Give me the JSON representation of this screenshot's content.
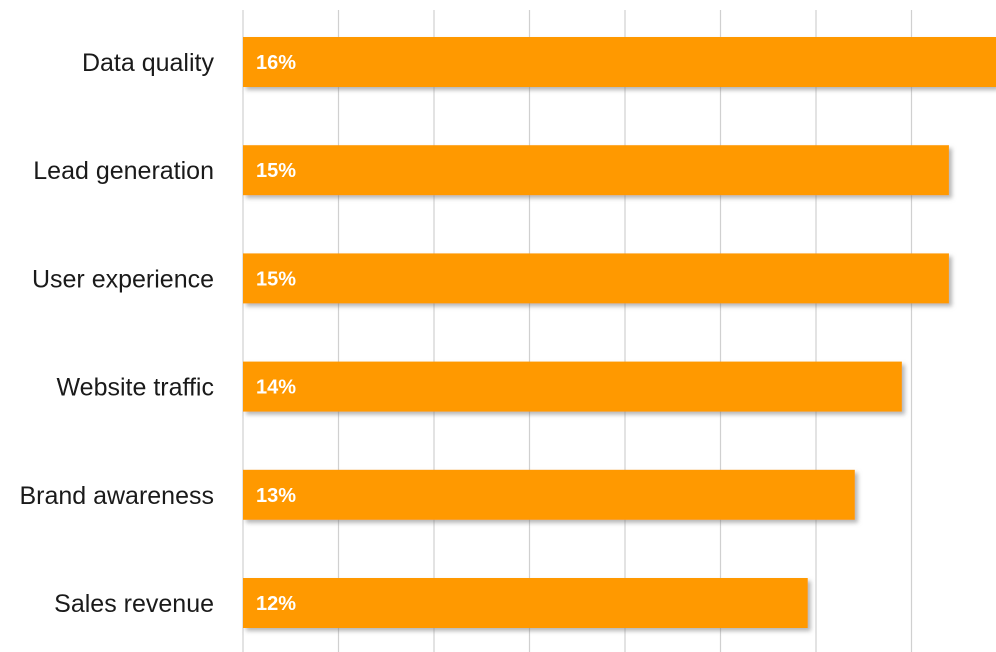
{
  "chart_data": {
    "type": "bar",
    "orientation": "horizontal",
    "categories": [
      "Data quality",
      "Lead generation",
      "User experience",
      "Website traffic",
      "Brand awareness",
      "Sales revenue"
    ],
    "values": [
      16,
      15,
      15,
      14,
      13,
      12
    ],
    "value_labels": [
      "16%",
      "15%",
      "15%",
      "14%",
      "13%",
      "12%"
    ],
    "xlim": [
      0,
      16
    ],
    "grid": true,
    "legend": "none",
    "bar_color": "#FF9900",
    "shadow_color": "#7a7a7a"
  }
}
